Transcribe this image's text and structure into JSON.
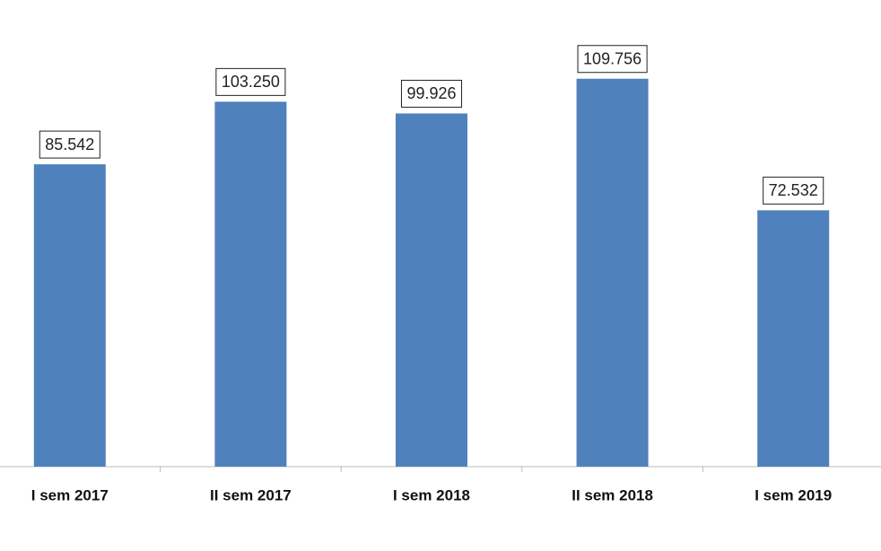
{
  "chart_data": {
    "type": "bar",
    "categories": [
      "I sem 2017",
      "II sem 2017",
      "I sem 2018",
      "II sem 2018",
      "I sem 2019"
    ],
    "values": [
      85542,
      103250,
      99926,
      109756,
      72532
    ],
    "value_labels": [
      "85.542",
      "103.250",
      "99.926",
      "109.756",
      "72.532"
    ],
    "color": "#4f81bd",
    "ylim": [
      0,
      130000
    ]
  }
}
